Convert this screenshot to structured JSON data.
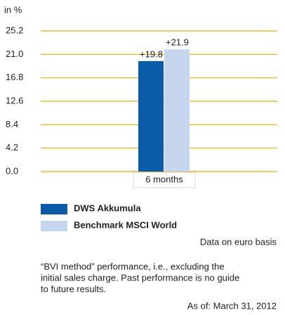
{
  "chart_data": {
    "type": "bar",
    "y_axis_label": "in %",
    "categories": [
      "6 months"
    ],
    "series": [
      {
        "name": "DWS Akkumula",
        "color": "#0b5ca8",
        "values": [
          19.8
        ],
        "value_labels": [
          "+19.8"
        ]
      },
      {
        "name": "Benchmark MSCI World",
        "color": "#c6d6ef",
        "values": [
          21.9
        ],
        "value_labels": [
          "+21.9"
        ]
      }
    ],
    "ylim": [
      0,
      25.2
    ],
    "yticks": [
      {
        "value": 0,
        "label": "0.0"
      },
      4.2,
      8.4,
      12.6,
      16.8,
      {
        "value": 21,
        "label": "21.0"
      },
      25.2
    ],
    "grid": true,
    "grid_color": "#f5a800",
    "data_note": "Data on euro basis"
  },
  "footnote": [
    "“BVI method” performance, i.e., excluding the",
    "initial sales charge. Past performance is no guide",
    "to future results."
  ],
  "as_of": "As of: March 31, 2012"
}
